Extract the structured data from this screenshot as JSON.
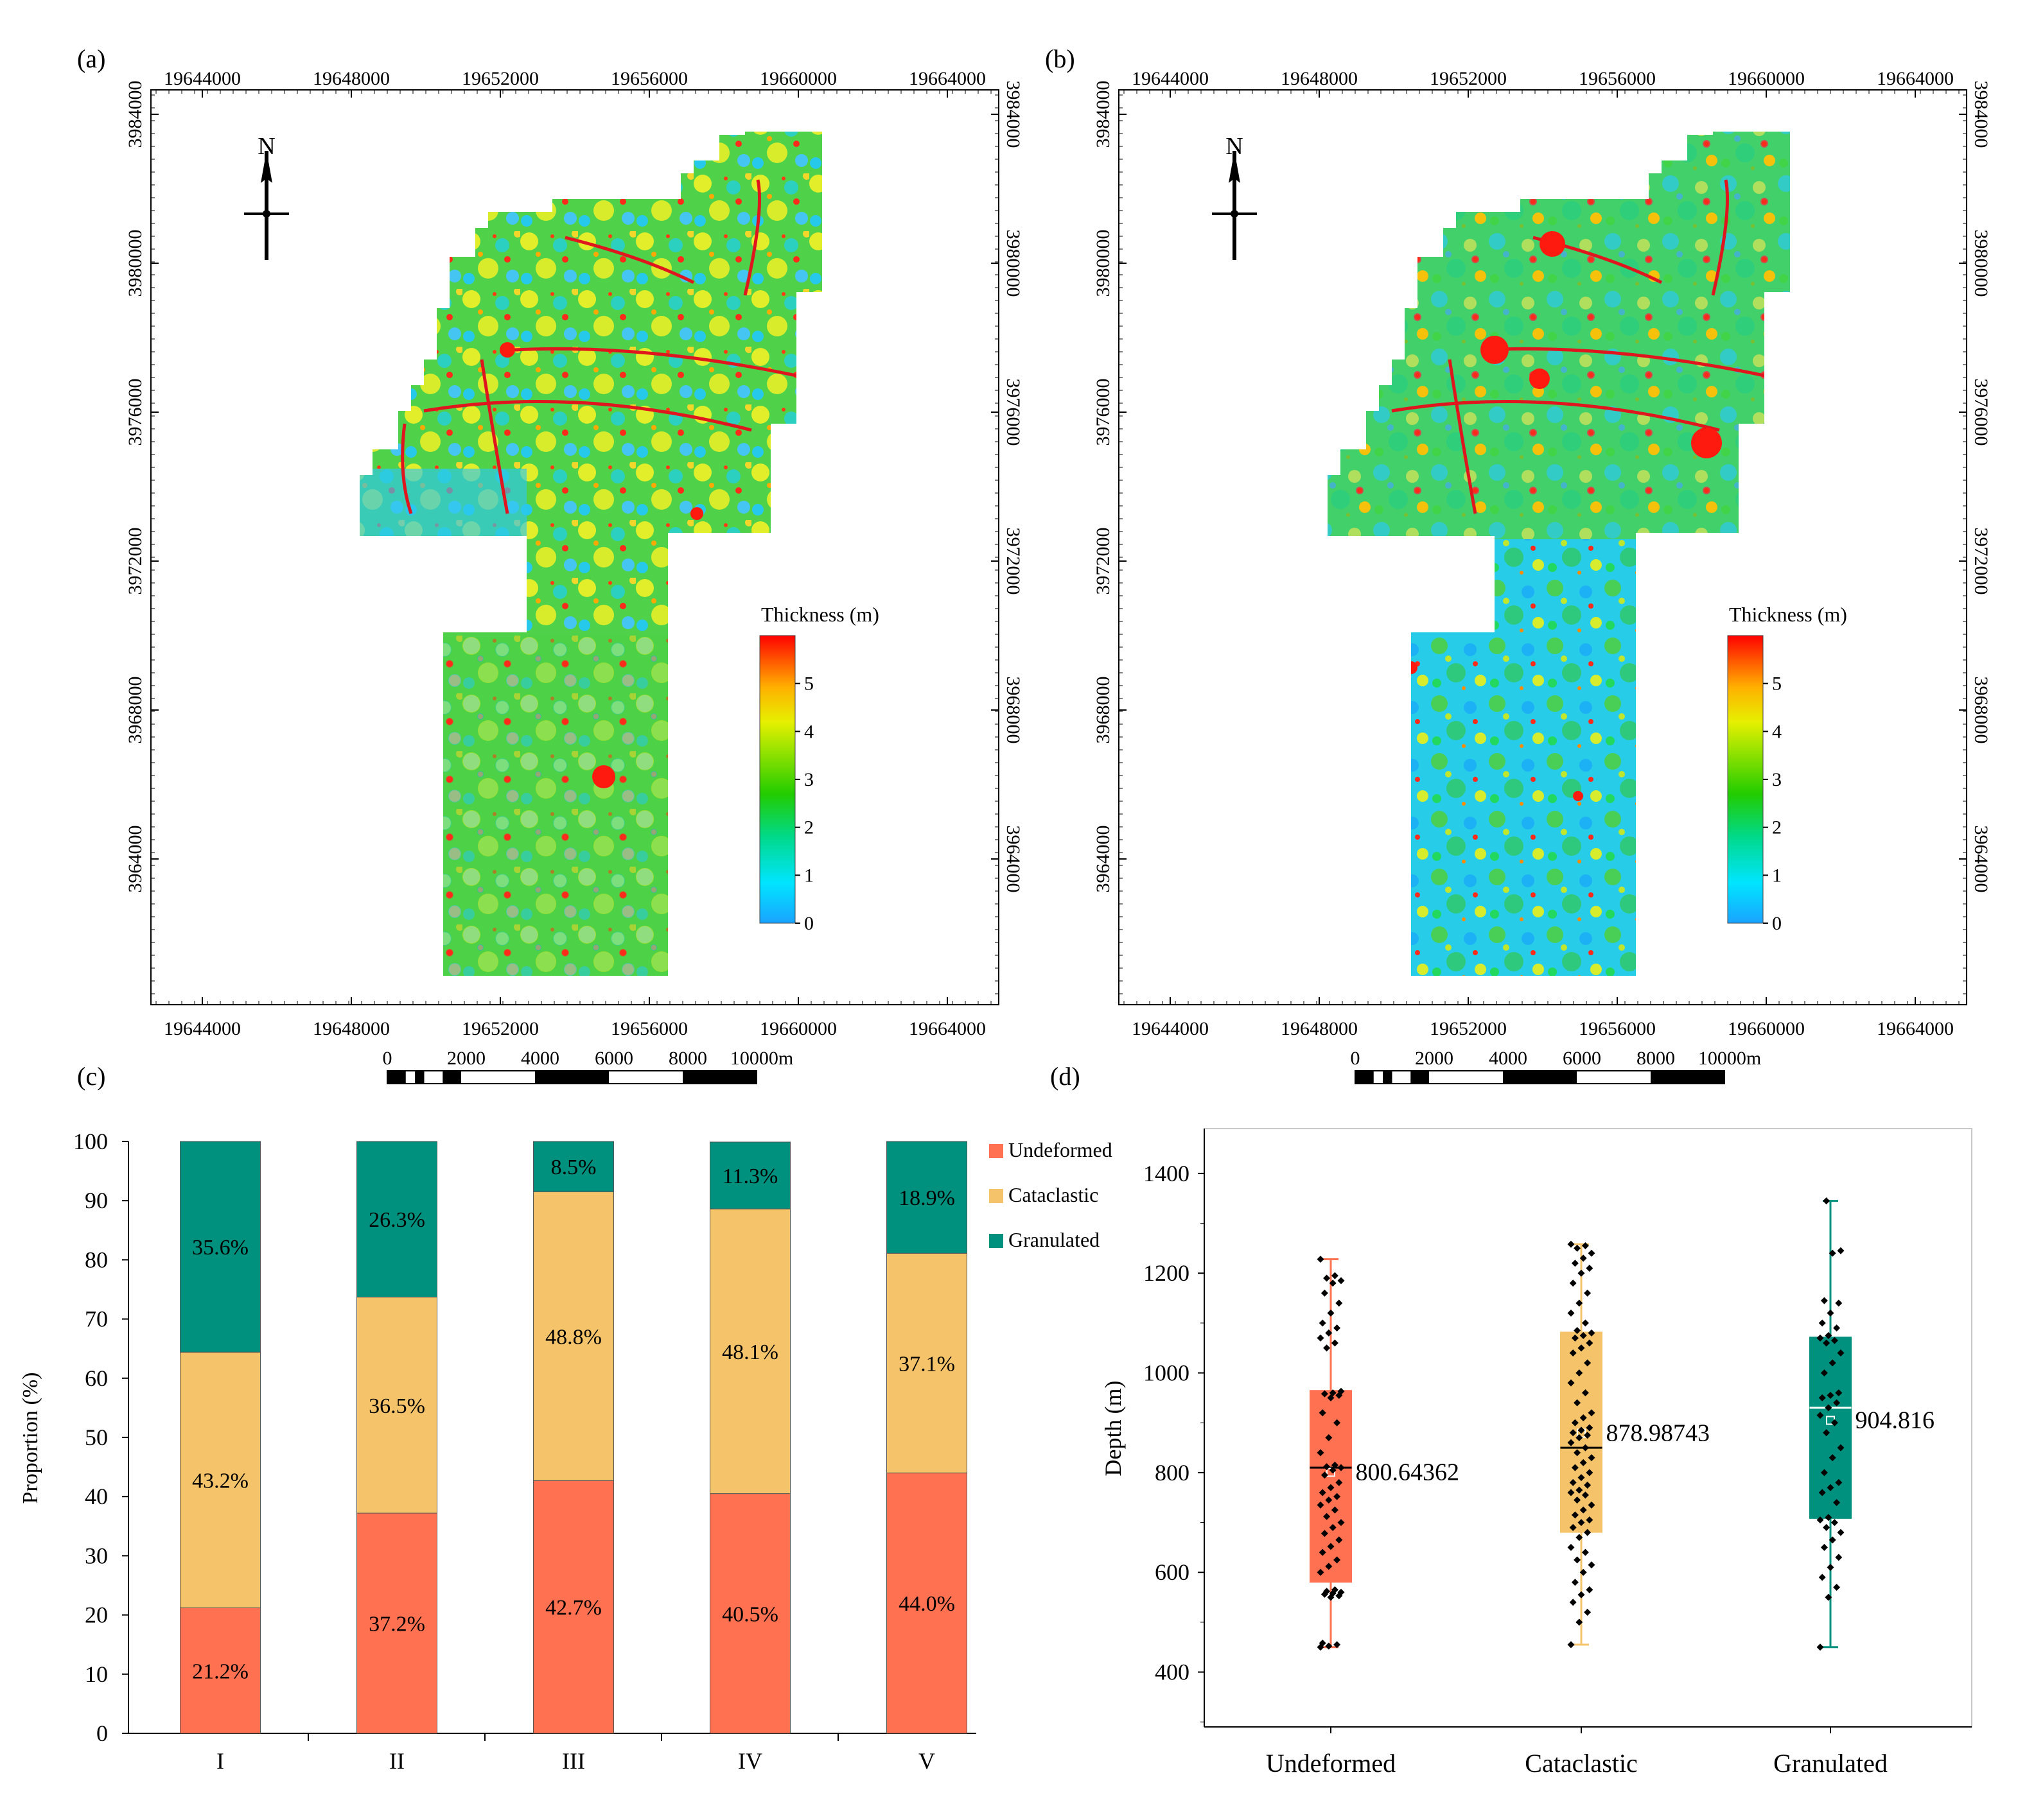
{
  "panels": {
    "a": {
      "label": "(a)",
      "x_ticks": [
        "19644000",
        "19648000",
        "19652000",
        "19656000",
        "19660000",
        "19664000"
      ],
      "y_ticks": [
        "3984000",
        "3980000",
        "3976000",
        "3972000",
        "3968000",
        "3964000"
      ],
      "north_label": "N",
      "colorbar": {
        "title": "Thickness (m)",
        "ticks": [
          "5",
          "4",
          "3",
          "2",
          "1",
          "0"
        ],
        "range": [
          0,
          6
        ]
      },
      "scalebar": {
        "labels": [
          "0",
          "2000",
          "4000",
          "6000",
          "8000",
          "10000m"
        ]
      }
    },
    "b": {
      "label": "(b)",
      "x_ticks": [
        "19644000",
        "19648000",
        "19652000",
        "19656000",
        "19660000",
        "19664000"
      ],
      "y_ticks": [
        "3984000",
        "3980000",
        "3976000",
        "3972000",
        "3968000",
        "3964000"
      ],
      "north_label": "N",
      "colorbar": {
        "title": "Thickness (m)",
        "ticks": [
          "5",
          "4",
          "3",
          "2",
          "1",
          "0"
        ],
        "range": [
          0,
          6
        ]
      },
      "scalebar": {
        "labels": [
          "0",
          "2000",
          "4000",
          "6000",
          "8000",
          "10000m"
        ]
      }
    },
    "c": {
      "label": "(c)"
    },
    "d": {
      "label": "(d)"
    }
  },
  "colors": {
    "undeformed": "#ff7150",
    "cataclastic": "#f5c46a",
    "granulated": "#00907e",
    "map_scale": [
      "#1aa3ff",
      "#00e5ff",
      "#00d98a",
      "#22cc00",
      "#88e000",
      "#e6f000",
      "#ffb000",
      "#ff5000",
      "#ff0000"
    ]
  },
  "chart_data": [
    {
      "type": "bar",
      "stacked": true,
      "categories": [
        "I",
        "II",
        "III",
        "IV",
        "V"
      ],
      "series": [
        {
          "name": "Undeformed",
          "values": [
            21.2,
            37.2,
            42.7,
            40.5,
            44.0
          ],
          "labels": [
            "21.2%",
            "37.2%",
            "42.7%",
            "40.5%",
            "44.0%"
          ]
        },
        {
          "name": "Cataclastic",
          "values": [
            43.2,
            36.5,
            48.8,
            48.1,
            37.1
          ],
          "labels": [
            "43.2%",
            "36.5%",
            "48.8%",
            "48.1%",
            "37.1%"
          ]
        },
        {
          "name": "Granulated",
          "values": [
            35.6,
            26.3,
            8.5,
            11.3,
            18.9
          ],
          "labels": [
            "35.6%",
            "26.3%",
            "8.5%",
            "11.3%",
            "18.9%"
          ]
        }
      ],
      "title": "",
      "xlabel": "",
      "ylabel": "Proportion (%)",
      "ylim": [
        0,
        100
      ],
      "yticks": [
        "0",
        "10",
        "20",
        "30",
        "40",
        "50",
        "60",
        "70",
        "80",
        "90",
        "100"
      ],
      "legend": [
        "Undeformed",
        "Cataclastic",
        "Granulated"
      ],
      "legend_position": "right"
    },
    {
      "type": "box",
      "categories": [
        "Undeformed",
        "Cataclastic",
        "Granulated"
      ],
      "ylabel": "Depth (m)",
      "ylim": [
        290,
        1490
      ],
      "yticks": [
        "400",
        "600",
        "800",
        "1000",
        "1200",
        "1400"
      ],
      "boxes": [
        {
          "name": "Undeformed",
          "min": 450,
          "q1": 580,
          "median": 810,
          "q3": 965,
          "max": 1228,
          "mean": 800.64362,
          "mean_label": "800.64362"
        },
        {
          "name": "Cataclastic",
          "min": 455,
          "q1": 680,
          "median": 850,
          "q3": 1082,
          "max": 1258,
          "mean": 878.98743,
          "mean_label": "878.98743"
        },
        {
          "name": "Granulated",
          "min": 450,
          "q1": 708,
          "median": 930,
          "q3": 1072,
          "max": 1345,
          "mean": 904.816,
          "mean_label": "904.816"
        }
      ],
      "points": [
        [
          450,
          452,
          455,
          458,
          550,
          553,
          556,
          558,
          560,
          562,
          565,
          600,
          612,
          625,
          640,
          652,
          665,
          678,
          690,
          700,
          712,
          725,
          735,
          745,
          752,
          760,
          770,
          780,
          795,
          805,
          810,
          812,
          815,
          840,
          870,
          900,
          920,
          950,
          955,
          958,
          960,
          963,
          1050,
          1060,
          1070,
          1080,
          1090,
          1100,
          1120,
          1140,
          1160,
          1180,
          1185,
          1190,
          1195,
          1228
        ],
        [
          455,
          500,
          520,
          540,
          555,
          565,
          580,
          600,
          615,
          625,
          640,
          650,
          670,
          680,
          690,
          700,
          705,
          715,
          725,
          735,
          745,
          755,
          760,
          765,
          775,
          780,
          790,
          800,
          810,
          820,
          830,
          840,
          850,
          860,
          870,
          875,
          880,
          885,
          890,
          900,
          910,
          920,
          940,
          960,
          980,
          1000,
          1020,
          1040,
          1050,
          1060,
          1070,
          1075,
          1080,
          1085,
          1100,
          1120,
          1140,
          1160,
          1180,
          1200,
          1210,
          1220,
          1230,
          1240,
          1250,
          1255,
          1258
        ],
        [
          450,
          550,
          570,
          590,
          610,
          630,
          650,
          665,
          680,
          690,
          700,
          705,
          710,
          740,
          760,
          770,
          780,
          800,
          830,
          850,
          880,
          900,
          915,
          930,
          940,
          950,
          955,
          960,
          1000,
          1020,
          1040,
          1060,
          1065,
          1070,
          1075,
          1090,
          1100,
          1120,
          1140,
          1145,
          1240,
          1245,
          1345
        ]
      ]
    }
  ]
}
